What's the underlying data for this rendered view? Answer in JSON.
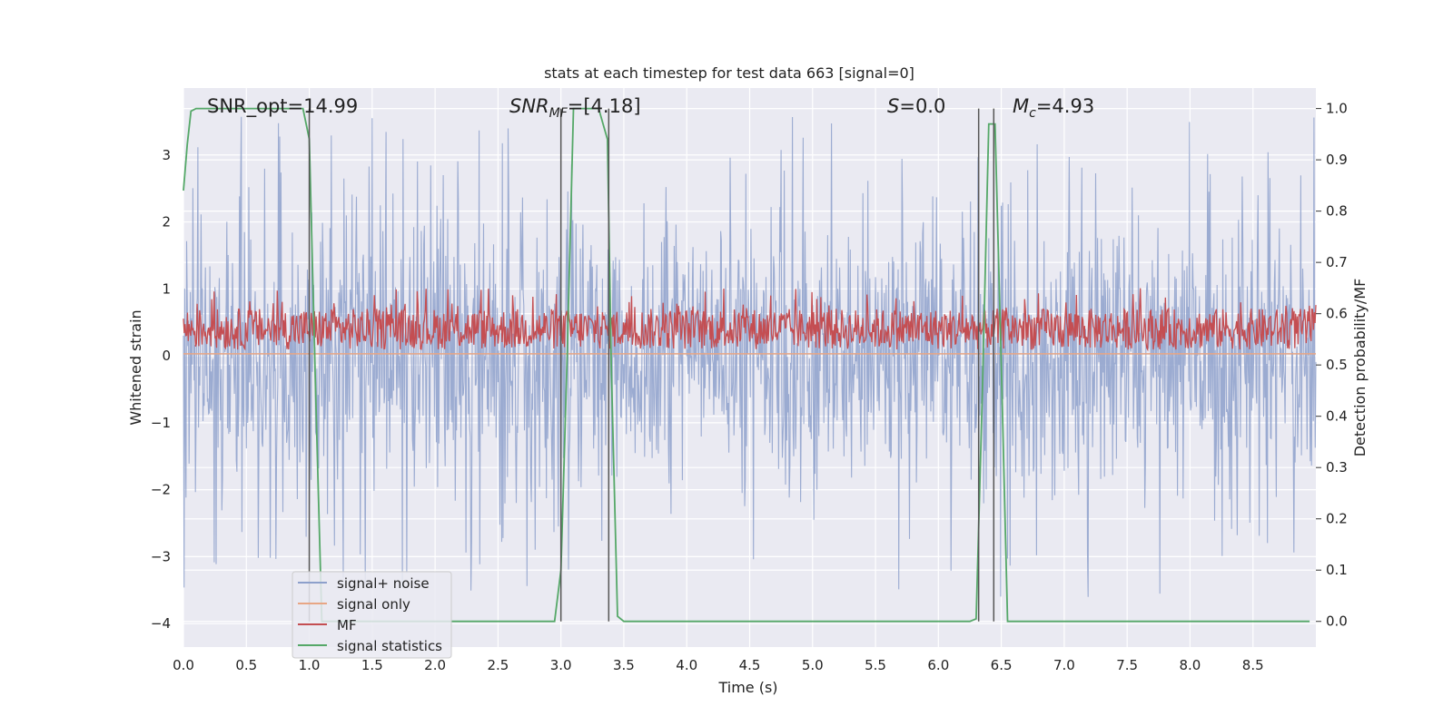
{
  "chart_data": {
    "type": "line",
    "title": "stats at each timestep for test data 663 [signal=0]",
    "xlabel": "Time (s)",
    "ylabel": "Whitened strain",
    "y2label": "Detection probability/MF",
    "xlim": [
      0,
      9.0
    ],
    "ylim": [
      -4.35,
      4.0
    ],
    "y2lim": [
      -0.05,
      1.04
    ],
    "xticks": [
      "0.0",
      "0.5",
      "1.0",
      "1.5",
      "2.0",
      "2.5",
      "3.0",
      "3.5",
      "4.0",
      "4.5",
      "5.0",
      "5.5",
      "6.0",
      "6.5",
      "7.0",
      "7.5",
      "8.0",
      "8.5"
    ],
    "xtick_values": [
      0,
      0.5,
      1,
      1.5,
      2,
      2.5,
      3,
      3.5,
      4,
      4.5,
      5,
      5.5,
      6,
      6.5,
      7,
      7.5,
      8,
      8.5
    ],
    "yticks": [
      "3",
      "2",
      "1",
      "0",
      "−1",
      "−2",
      "−3",
      "−4"
    ],
    "ytick_values": [
      3,
      2,
      1,
      0,
      -1,
      -2,
      -3,
      -4
    ],
    "y2ticks": [
      "1.0",
      "0.9",
      "0.8",
      "0.7",
      "0.6",
      "0.5",
      "0.4",
      "0.3",
      "0.2",
      "0.1",
      "0.0"
    ],
    "y2tick_values": [
      1.0,
      0.9,
      0.8,
      0.7,
      0.6,
      0.5,
      0.4,
      0.3,
      0.2,
      0.1,
      0.0
    ],
    "grid": true,
    "legend_position": "lower-left",
    "legend": [
      {
        "label": "signal+ noise",
        "color": "#8da0cb"
      },
      {
        "label": "signal only",
        "color": "#e8a685"
      },
      {
        "label": "MF",
        "color": "#c44e52"
      },
      {
        "label": "signal statistics",
        "color": "#55a868"
      }
    ],
    "annotations": {
      "snr_opt": "SNR_opt=14.99",
      "snr_mf_main": "SNR",
      "snr_mf_sub": "MF",
      "snr_mf_rest": "=[4.18]",
      "s_main": "S",
      "s_rest": "=0.0",
      "mc_main": "M",
      "mc_sub": "c",
      "mc_rest": "=4.93"
    },
    "series": [
      {
        "name": "signal+ noise",
        "axis": "left",
        "color": "#8da0cb",
        "description_of_shape": "dense whitened noise, amplitude about ±2.5 with spikes to ±3.6",
        "envelope_typical": 2.3,
        "envelope_peak": 3.6
      },
      {
        "name": "signal only",
        "axis": "left",
        "color": "#e8a685",
        "y": 0.03
      },
      {
        "name": "MF",
        "axis": "right",
        "color": "#c44e52",
        "typical_range": [
          0.53,
          0.61
        ],
        "peak": 0.65
      },
      {
        "name": "signal statistics",
        "axis": "right",
        "color": "#55a868",
        "x": [
          0.0,
          0.03,
          0.06,
          0.1,
          0.2,
          0.5,
          0.8,
          0.95,
          1.0,
          1.05,
          1.1,
          1.3,
          1.6,
          2.0,
          2.5,
          2.95,
          3.0,
          3.05,
          3.1,
          3.2,
          3.3,
          3.37,
          3.4,
          3.45,
          3.5,
          3.7,
          4.0,
          5.0,
          6.0,
          6.25,
          6.3,
          6.35,
          6.4,
          6.45,
          6.5,
          6.55,
          6.6,
          7.0,
          8.0,
          8.95
        ],
        "y": [
          0.84,
          0.93,
          0.995,
          1.0,
          1.0,
          1.0,
          1.0,
          1.0,
          0.94,
          0.45,
          0.0,
          0.0,
          0.0,
          0.0,
          0.0,
          0.0,
          0.1,
          0.52,
          1.0,
          1.0,
          1.0,
          0.94,
          0.5,
          0.01,
          0.0,
          0.0,
          0.0,
          0.0,
          0.0,
          0.0,
          0.005,
          0.45,
          0.97,
          0.97,
          0.5,
          0.0,
          0.0,
          0.0,
          0.0,
          0.0
        ]
      }
    ],
    "vertical_lines_x": [
      1.0,
      3.0,
      3.38,
      6.32,
      6.44
    ],
    "vertical_lines_y2_range": [
      0.0,
      1.0
    ],
    "colors": {
      "axes_background": "#eaeaf2",
      "grid": "#ffffff",
      "vline": "#555555"
    }
  }
}
